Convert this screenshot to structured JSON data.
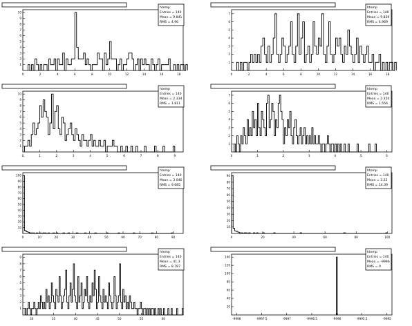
{
  "chart_data": [
    {
      "type": "histogram",
      "stats": {
        "name": "htemp",
        "entries": "Entries = 140",
        "mean": "Mean = 9.841",
        "rms": "RMS = 4.96"
      },
      "xlim": [
        0,
        18.5
      ],
      "ylim": [
        0,
        10.5
      ],
      "xticks": [
        0,
        2,
        4,
        6,
        8,
        10,
        12,
        14,
        16,
        18
      ],
      "yticks": [
        1,
        2,
        3,
        4,
        5,
        6,
        7,
        8,
        9,
        10
      ],
      "bins": {
        "x0": 0.6,
        "width": 0.2,
        "values": [
          1,
          0,
          1,
          0,
          2,
          1,
          0,
          1,
          0,
          1,
          1,
          0,
          2,
          1,
          1,
          2,
          0,
          2,
          1,
          1,
          3,
          0,
          2,
          1,
          1,
          2,
          2,
          10,
          4,
          2,
          2,
          2,
          3,
          1,
          2,
          1,
          0,
          1,
          1,
          1,
          3,
          2,
          2,
          0,
          3,
          1,
          2,
          5,
          2,
          2,
          2,
          0,
          1,
          2,
          0,
          1,
          1,
          2,
          3,
          3,
          2,
          0,
          1,
          2,
          0,
          2,
          1,
          2,
          1,
          1,
          0,
          2,
          1,
          0,
          1,
          2,
          0,
          1,
          1,
          1,
          1,
          2,
          0,
          0,
          1,
          0,
          1,
          0,
          1,
          1,
          0,
          1
        ]
      }
    },
    {
      "type": "histogram",
      "stats": {
        "name": "htemp",
        "entries": "Entries = 140",
        "mean": "Mean = 9.839",
        "rms": "RMS = 4.969"
      },
      "xlim": [
        0,
        18.5
      ],
      "ylim": [
        0,
        7.5
      ],
      "xticks": [
        0,
        2,
        4,
        6,
        8,
        10,
        12,
        14,
        16,
        18
      ],
      "yticks": [
        1,
        2,
        3,
        4,
        5,
        6,
        7
      ],
      "bins": {
        "x0": 0.6,
        "width": 0.2,
        "values": [
          1,
          0,
          1,
          0,
          1,
          1,
          0,
          1,
          2,
          1,
          2,
          1,
          2,
          1,
          3,
          4,
          2,
          1,
          3,
          1,
          2,
          4,
          7,
          2,
          1,
          2,
          4,
          3,
          1,
          2,
          3,
          6,
          2,
          1,
          3,
          7,
          2,
          4,
          6,
          1,
          2,
          3,
          1,
          2,
          6,
          3,
          2,
          4,
          3,
          7,
          2,
          1,
          3,
          6,
          2,
          1,
          2,
          4,
          3,
          4,
          2,
          1,
          3,
          2,
          5,
          3,
          2,
          1,
          2,
          4,
          1,
          3,
          2,
          1,
          2,
          3,
          1,
          1,
          2,
          0,
          1,
          1,
          2,
          0,
          1,
          0,
          1,
          0,
          1,
          1,
          0,
          1
        ]
      }
    },
    {
      "type": "histogram",
      "stats": {
        "name": "htemp",
        "entries": "Entries = 140",
        "mean": "Mean = 2.334",
        "rms": "RMS = 1.811"
      },
      "xlim": [
        0,
        9.5
      ],
      "ylim": [
        0,
        10.5
      ],
      "xticks": [
        0,
        1,
        2,
        3,
        4,
        5,
        6,
        7,
        8,
        9
      ],
      "yticks": [
        1,
        2,
        3,
        4,
        5,
        6,
        7,
        8,
        9,
        10
      ],
      "bins": {
        "x0": 0.1,
        "width": 0.1,
        "values": [
          1,
          1,
          2,
          1,
          3,
          5,
          3,
          4,
          5,
          8,
          6,
          9,
          7,
          6,
          3,
          5,
          10,
          4,
          7,
          8,
          4,
          3,
          6,
          5,
          2,
          3,
          4,
          5,
          3,
          2,
          4,
          3,
          2,
          1,
          3,
          2,
          2,
          1,
          2,
          3,
          1,
          2,
          1,
          1,
          2,
          1,
          1,
          2,
          0,
          1,
          1,
          1,
          2,
          1,
          1,
          0,
          0,
          1,
          0,
          0,
          1,
          0,
          0,
          1,
          0,
          0,
          1,
          0,
          0,
          0,
          0,
          1,
          0,
          0,
          0,
          0,
          0,
          1,
          0,
          0,
          0,
          0,
          1,
          0,
          0,
          0,
          0,
          0,
          1
        ]
      }
    },
    {
      "type": "histogram",
      "stats": {
        "name": "htemp",
        "entries": "Entries = 140",
        "mean": "Mean = 2.354",
        "rms": "RMS = 1.556"
      },
      "xlim": [
        0,
        6.2
      ],
      "ylim": [
        0,
        7.5
      ],
      "xticks": [
        0,
        1,
        2,
        3,
        4,
        5,
        6
      ],
      "yticks": [
        1,
        2,
        3,
        4,
        5,
        6,
        7
      ],
      "bins": {
        "x0": 0.1,
        "width": 0.05,
        "values": [
          1,
          0,
          2,
          1,
          0,
          2,
          1,
          3,
          2,
          1,
          4,
          2,
          3,
          2,
          5,
          3,
          4,
          2,
          6,
          3,
          2,
          5,
          4,
          3,
          2,
          6,
          7,
          3,
          4,
          6,
          5,
          2,
          4,
          3,
          6,
          7,
          5,
          4,
          1,
          3,
          2,
          4,
          3,
          5,
          2,
          1,
          3,
          4,
          2,
          1,
          2,
          3,
          1,
          2,
          3,
          1,
          2,
          1,
          2,
          1,
          3,
          1,
          2,
          1,
          1,
          2,
          1,
          0,
          1,
          1,
          0,
          1,
          2,
          1,
          0,
          1,
          1,
          0,
          1,
          0,
          1,
          0,
          1,
          0,
          0,
          1,
          0,
          0,
          1,
          0,
          0,
          0,
          0,
          0,
          0,
          1,
          0,
          0,
          0,
          0,
          0,
          0,
          0,
          0,
          1,
          0,
          0,
          0,
          0,
          1
        ]
      }
    },
    {
      "type": "histogram",
      "stats": {
        "name": "htemp",
        "entries": "Entries = 140",
        "mean": "Mean = 3.046",
        "rms": "RMS = 9.685"
      },
      "xlim": [
        0,
        96
      ],
      "ylim": [
        0,
        105
      ],
      "xticks": [
        0,
        10,
        20,
        30,
        40,
        50,
        60,
        70,
        80,
        90
      ],
      "yticks": [
        10,
        20,
        30,
        40,
        50,
        60,
        70,
        80,
        90,
        100
      ],
      "bins": {
        "x0": 0,
        "width": 1,
        "values": [
          100,
          5,
          3,
          2,
          1,
          1,
          1,
          0,
          1,
          0,
          1,
          0,
          1,
          1,
          0,
          1,
          0,
          0,
          1,
          0,
          1,
          0,
          0,
          0,
          1,
          0,
          0,
          1,
          0,
          0,
          0,
          0,
          1,
          0,
          0,
          0,
          0,
          1,
          0,
          0,
          0,
          0,
          0,
          1,
          0,
          0,
          0,
          0,
          0,
          0,
          1,
          0,
          0,
          0,
          0,
          0,
          0,
          1,
          0,
          0,
          0,
          0,
          0,
          0,
          0,
          0,
          1,
          0,
          0,
          0,
          0,
          0,
          0,
          0,
          0,
          0,
          0,
          1,
          0,
          0,
          0,
          0,
          0,
          0,
          0,
          0,
          0,
          0,
          0,
          1
        ]
      }
    },
    {
      "type": "histogram",
      "stats": {
        "name": "htemp",
        "entries": "Entries = 140",
        "mean": "Mean = 3.22",
        "rms": "RMS = 14.39"
      },
      "xlim": [
        0,
        103
      ],
      "ylim": [
        0,
        95
      ],
      "xticks": [
        0,
        20,
        40,
        60,
        80,
        100
      ],
      "yticks": [
        10,
        20,
        30,
        40,
        50,
        60,
        70,
        80,
        90
      ],
      "bins": {
        "x0": 0,
        "width": 1,
        "values": [
          90,
          8,
          4,
          3,
          2,
          1,
          1,
          0,
          1,
          1,
          0,
          1,
          0,
          0,
          1,
          0,
          1,
          0,
          0,
          0,
          1,
          0,
          0,
          0,
          0,
          0,
          0,
          1,
          0,
          0,
          0,
          0,
          0,
          0,
          0,
          0,
          0,
          0,
          0,
          0,
          0,
          0,
          0,
          0,
          1,
          0,
          0,
          0,
          0,
          0,
          0,
          0,
          0,
          0,
          0,
          0,
          0,
          0,
          0,
          0,
          0,
          0,
          0,
          0,
          0,
          0,
          0,
          0,
          0,
          0,
          0,
          0,
          1,
          0,
          0,
          0,
          0,
          0,
          0,
          0,
          0,
          0,
          0,
          0,
          0,
          0,
          0,
          0,
          0,
          0,
          0,
          0,
          0,
          0,
          0,
          0,
          0,
          0,
          0,
          1
        ]
      }
    },
    {
      "type": "histogram",
      "stats": {
        "name": "htemp",
        "entries": "Entries = 140",
        "mean": "Mean = 41.3",
        "rms": "RMS = 8.787"
      },
      "xlim": [
        28,
        64.5
      ],
      "ylim": [
        0,
        9.5
      ],
      "xticks": [
        30,
        35,
        40,
        45,
        50,
        55,
        60
      ],
      "yticks": [
        1,
        2,
        3,
        4,
        5,
        6,
        7,
        8,
        9
      ],
      "bins": {
        "x0": 28.5,
        "width": 0.25,
        "values": [
          1,
          0,
          1,
          2,
          1,
          0,
          1,
          1,
          2,
          1,
          0,
          1,
          2,
          1,
          3,
          2,
          1,
          2,
          1,
          4,
          2,
          3,
          1,
          2,
          5,
          3,
          2,
          1,
          4,
          3,
          2,
          6,
          3,
          1,
          2,
          3,
          4,
          7,
          2,
          1,
          3,
          5,
          2,
          4,
          8,
          3,
          2,
          1,
          6,
          2,
          3,
          5,
          1,
          2,
          4,
          3,
          6,
          2,
          1,
          3,
          2,
          5,
          3,
          7,
          4,
          1,
          2,
          6,
          3,
          2,
          1,
          4,
          2,
          3,
          2,
          1,
          5,
          3,
          2,
          1,
          2,
          6,
          3,
          1,
          2,
          3,
          8,
          2,
          1,
          4,
          2,
          3,
          1,
          2,
          1,
          3,
          2,
          1,
          1,
          2,
          1,
          1,
          0,
          1,
          1,
          2,
          1,
          0,
          1,
          1,
          0,
          1,
          0,
          1,
          0,
          1,
          1,
          0,
          1,
          0,
          0,
          1,
          0,
          1,
          0,
          0,
          1,
          0,
          0,
          0,
          1,
          0,
          0,
          1,
          0,
          0,
          0,
          0,
          1,
          0,
          0,
          0,
          0,
          1
        ]
      }
    },
    {
      "type": "histogram",
      "stats": {
        "name": "htemp",
        "entries": "Entries = 140",
        "mean": "Mean = -9996",
        "rms": "RMS = 0"
      },
      "xlim": [
        -9998.1,
        -9994.9
      ],
      "ylim": [
        0,
        147
      ],
      "xtick_values": [
        -9998,
        -9997.5,
        -9997,
        -9996.5,
        -9996,
        -9995.5,
        -9995
      ],
      "xtick_labels": [
        "-9998",
        "-9997.5",
        "-9997",
        "-9996.5",
        "-9996",
        "-9995.5",
        "-9995"
      ],
      "yticks": [
        20,
        40,
        60,
        80,
        100,
        120,
        140
      ],
      "spike": {
        "x": -9996,
        "width": 0.02,
        "value": 140
      }
    }
  ]
}
